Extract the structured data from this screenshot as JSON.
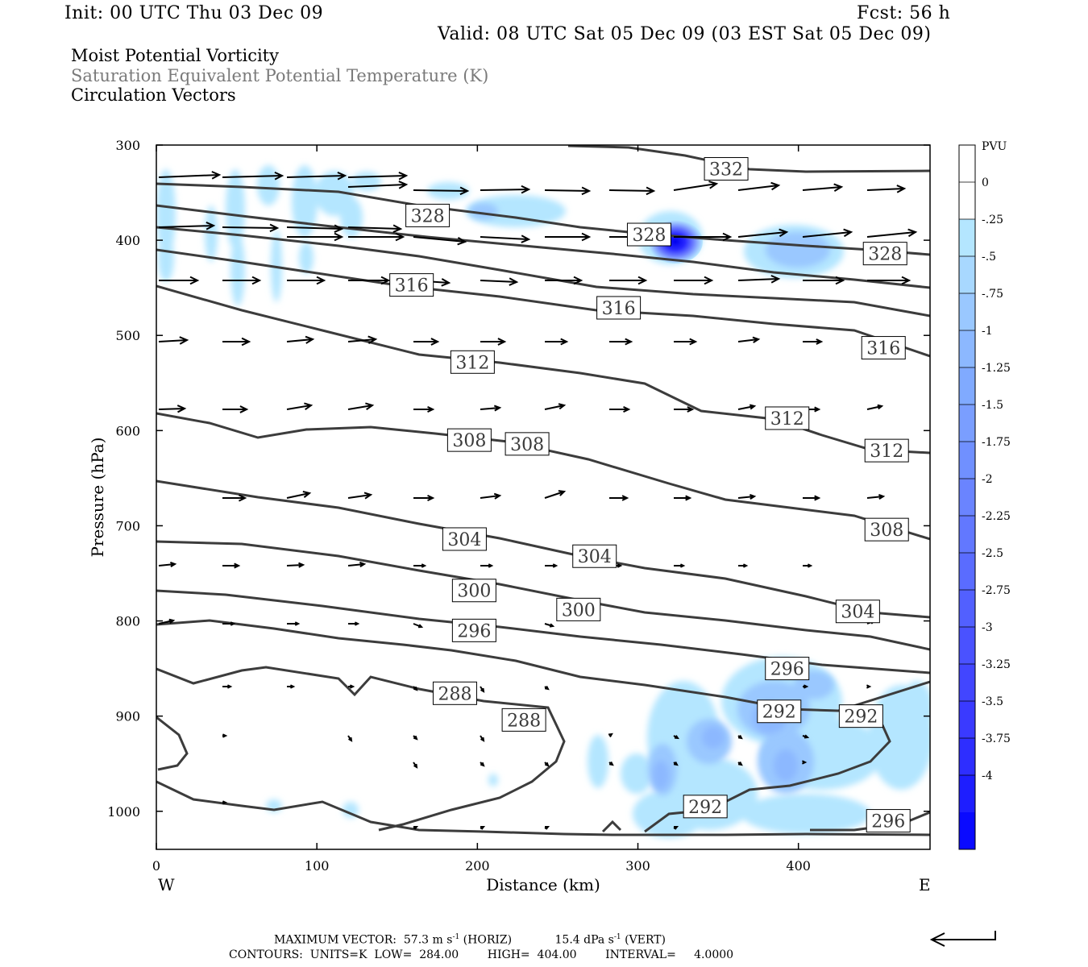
{
  "header": {
    "init": "Init: 00 UTC Thu 03 Dec 09",
    "fcst": "Fcst:   56 h",
    "valid": "Valid: 08 UTC Sat 05 Dec 09 (03 EST Sat 05 Dec 09)"
  },
  "fields": [
    {
      "label": "Moist Potential Vorticity",
      "color": "#000000"
    },
    {
      "label": "Saturation Equivalent Potential Temperature (K)",
      "color": "#7a7a7a"
    },
    {
      "label": "Circulation Vectors",
      "color": "#000000"
    }
  ],
  "chart_data": {
    "type": "heatmap",
    "xlabel": "Distance (km)",
    "ylabel": "Pressure (hPa)",
    "x_ticks": [
      0,
      100,
      200,
      300,
      400
    ],
    "y_ticks": [
      300,
      400,
      500,
      600,
      700,
      800,
      900,
      1000
    ],
    "xlim": [
      0,
      482
    ],
    "ylim": [
      300,
      1040
    ],
    "west_label": "W",
    "east_label": "E",
    "colorbar": {
      "title": "PVU",
      "levels": [
        "0",
        "-.25",
        "-.5",
        "-.75",
        "-1",
        "-1.25",
        "-1.5",
        "-1.75",
        "-2",
        "-2.25",
        "-2.5",
        "-2.75",
        "-3",
        "-3.25",
        "-3.5",
        "-3.75",
        "-4"
      ],
      "colors": [
        "#ffffff",
        "#ffffff",
        "#b4e6ff",
        "#a8d8ff",
        "#9ac8ff",
        "#8cb8ff",
        "#80aaff",
        "#7a9eff",
        "#7090ff",
        "#6a84ff",
        "#6278ff",
        "#5a6cff",
        "#5260ff",
        "#4a52ff",
        "#4246ff",
        "#3a3aff",
        "#2e2eff",
        "#1e1eff",
        "#0a0aff"
      ]
    },
    "contour_labels": [
      {
        "text": "332",
        "x": 355,
        "p": 325
      },
      {
        "text": "328",
        "x": 169,
        "p": 374
      },
      {
        "text": "328",
        "x": 307,
        "p": 394
      },
      {
        "text": "328",
        "x": 454,
        "p": 414
      },
      {
        "text": "316",
        "x": 159,
        "p": 447
      },
      {
        "text": "316",
        "x": 288,
        "p": 471
      },
      {
        "text": "316",
        "x": 453,
        "p": 513
      },
      {
        "text": "312",
        "x": 197,
        "p": 528
      },
      {
        "text": "312",
        "x": 393,
        "p": 587
      },
      {
        "text": "312",
        "x": 455,
        "p": 621
      },
      {
        "text": "308",
        "x": 195,
        "p": 610
      },
      {
        "text": "308",
        "x": 231,
        "p": 614
      },
      {
        "text": "308",
        "x": 455,
        "p": 704
      },
      {
        "text": "304",
        "x": 192,
        "p": 714
      },
      {
        "text": "304",
        "x": 273,
        "p": 732
      },
      {
        "text": "304",
        "x": 437,
        "p": 790
      },
      {
        "text": "300",
        "x": 198,
        "p": 768
      },
      {
        "text": "300",
        "x": 263,
        "p": 788
      },
      {
        "text": "296",
        "x": 198,
        "p": 810
      },
      {
        "text": "296",
        "x": 393,
        "p": 850
      },
      {
        "text": "296",
        "x": 456,
        "p": 1010
      },
      {
        "text": "288",
        "x": 186,
        "p": 876
      },
      {
        "text": "288",
        "x": 229,
        "p": 904
      },
      {
        "text": "292",
        "x": 388,
        "p": 895
      },
      {
        "text": "292",
        "x": 439,
        "p": 900
      },
      {
        "text": "292",
        "x": 342,
        "p": 995
      }
    ]
  },
  "footer": {
    "max_vector_label": "MAXIMUM VECTOR:",
    "max_vector_horiz_value": "57.3 m s",
    "max_vector_horiz_unit": "(HORIZ)",
    "max_vector_vert_value": "15.4 dPa s",
    "max_vector_vert_unit": "(VERT)",
    "exponent": "-1",
    "contours": "CONTOURS:  UNITS=K  LOW=  284.00        HIGH=  404.00        INTERVAL=     4.0000"
  }
}
